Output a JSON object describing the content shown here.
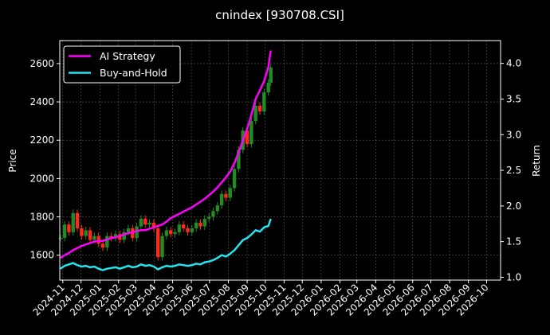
{
  "chart_data": {
    "type": "line",
    "title": "cnindex [930708.CSI]",
    "ylabel_left": "Price",
    "ylabel_right": "Return",
    "xlabel": "",
    "grid": true,
    "legend_position": "top-left",
    "background": "#000000",
    "ylim_left": [
      1470,
      2720
    ],
    "ylim_right": [
      0.96,
      4.32
    ],
    "xlim": [
      "2024-10-27",
      "2026-10-24"
    ],
    "left_ticks": [
      1600,
      1800,
      2000,
      2200,
      2400,
      2600
    ],
    "right_ticks": [
      1.0,
      1.5,
      2.0,
      2.5,
      3.0,
      3.5,
      4.0
    ],
    "x_ticks": [
      "2024-11",
      "2024-12",
      "2025-01",
      "2025-02",
      "2025-03",
      "2025-04",
      "2025-05",
      "2025-06",
      "2025-07",
      "2025-08",
      "2025-09",
      "2025-10",
      "2025-11",
      "2025-12",
      "2026-01",
      "2026-02",
      "2026-03",
      "2026-04",
      "2026-05",
      "2026-06",
      "2026-07",
      "2026-08",
      "2026-09",
      "2026-10"
    ],
    "price_candles": {
      "name": "Price",
      "axis": "left",
      "up_color": "#228B22",
      "down_color": "#ff2a1a",
      "points": [
        {
          "x": "2024-10-28",
          "close": 1690
        },
        {
          "x": "2024-11-04",
          "close": 1760
        },
        {
          "x": "2024-11-11",
          "close": 1720
        },
        {
          "x": "2024-11-18",
          "close": 1820
        },
        {
          "x": "2024-11-25",
          "close": 1740
        },
        {
          "x": "2024-12-02",
          "close": 1700
        },
        {
          "x": "2024-12-09",
          "close": 1730
        },
        {
          "x": "2024-12-16",
          "close": 1680
        },
        {
          "x": "2024-12-23",
          "close": 1700
        },
        {
          "x": "2024-12-30",
          "close": 1660
        },
        {
          "x": "2025-01-06",
          "close": 1640
        },
        {
          "x": "2025-01-13",
          "close": 1700
        },
        {
          "x": "2025-01-20",
          "close": 1690
        },
        {
          "x": "2025-01-27",
          "close": 1710
        },
        {
          "x": "2025-02-03",
          "close": 1680
        },
        {
          "x": "2025-02-10",
          "close": 1720
        },
        {
          "x": "2025-02-17",
          "close": 1740
        },
        {
          "x": "2025-02-24",
          "close": 1690
        },
        {
          "x": "2025-03-03",
          "close": 1750
        },
        {
          "x": "2025-03-10",
          "close": 1790
        },
        {
          "x": "2025-03-17",
          "close": 1760
        },
        {
          "x": "2025-03-24",
          "close": 1770
        },
        {
          "x": "2025-03-31",
          "close": 1740
        },
        {
          "x": "2025-04-07",
          "close": 1590
        },
        {
          "x": "2025-04-14",
          "close": 1700
        },
        {
          "x": "2025-04-21",
          "close": 1730
        },
        {
          "x": "2025-04-28",
          "close": 1710
        },
        {
          "x": "2025-05-05",
          "close": 1720
        },
        {
          "x": "2025-05-12",
          "close": 1760
        },
        {
          "x": "2025-05-19",
          "close": 1740
        },
        {
          "x": "2025-05-26",
          "close": 1720
        },
        {
          "x": "2025-06-02",
          "close": 1740
        },
        {
          "x": "2025-06-09",
          "close": 1770
        },
        {
          "x": "2025-06-16",
          "close": 1750
        },
        {
          "x": "2025-06-23",
          "close": 1790
        },
        {
          "x": "2025-06-30",
          "close": 1800
        },
        {
          "x": "2025-07-07",
          "close": 1830
        },
        {
          "x": "2025-07-14",
          "close": 1860
        },
        {
          "x": "2025-07-21",
          "close": 1920
        },
        {
          "x": "2025-07-28",
          "close": 1900
        },
        {
          "x": "2025-08-04",
          "close": 1950
        },
        {
          "x": "2025-08-11",
          "close": 2050
        },
        {
          "x": "2025-08-18",
          "close": 2150
        },
        {
          "x": "2025-08-25",
          "close": 2250
        },
        {
          "x": "2025-09-01",
          "close": 2180
        },
        {
          "x": "2025-09-08",
          "close": 2300
        },
        {
          "x": "2025-09-15",
          "close": 2380
        },
        {
          "x": "2025-09-22",
          "close": 2350
        },
        {
          "x": "2025-09-29",
          "close": 2450
        },
        {
          "x": "2025-10-06",
          "close": 2500
        },
        {
          "x": "2025-10-10",
          "close": 2580
        }
      ]
    },
    "series": [
      {
        "name": "AI Strategy",
        "axis": "right",
        "color": "#ff00ff",
        "points": [
          [
            "2024-10-28",
            1.27
          ],
          [
            "2024-11-04",
            1.31
          ],
          [
            "2024-11-11",
            1.34
          ],
          [
            "2024-11-18",
            1.38
          ],
          [
            "2024-11-25",
            1.41
          ],
          [
            "2024-12-02",
            1.44
          ],
          [
            "2024-12-09",
            1.46
          ],
          [
            "2024-12-16",
            1.48
          ],
          [
            "2024-12-23",
            1.5
          ],
          [
            "2024-12-30",
            1.51
          ],
          [
            "2025-01-06",
            1.51
          ],
          [
            "2025-01-13",
            1.53
          ],
          [
            "2025-01-20",
            1.55
          ],
          [
            "2025-01-27",
            1.56
          ],
          [
            "2025-02-03",
            1.58
          ],
          [
            "2025-02-10",
            1.6
          ],
          [
            "2025-02-17",
            1.62
          ],
          [
            "2025-02-24",
            1.63
          ],
          [
            "2025-03-03",
            1.65
          ],
          [
            "2025-03-10",
            1.66
          ],
          [
            "2025-03-17",
            1.66
          ],
          [
            "2025-03-24",
            1.68
          ],
          [
            "2025-03-31",
            1.7
          ],
          [
            "2025-04-07",
            1.72
          ],
          [
            "2025-04-14",
            1.74
          ],
          [
            "2025-04-21",
            1.78
          ],
          [
            "2025-04-28",
            1.83
          ],
          [
            "2025-05-05",
            1.86
          ],
          [
            "2025-05-12",
            1.89
          ],
          [
            "2025-05-19",
            1.92
          ],
          [
            "2025-05-26",
            1.95
          ],
          [
            "2025-06-02",
            1.98
          ],
          [
            "2025-06-09",
            2.02
          ],
          [
            "2025-06-16",
            2.06
          ],
          [
            "2025-06-23",
            2.1
          ],
          [
            "2025-06-30",
            2.15
          ],
          [
            "2025-07-07",
            2.2
          ],
          [
            "2025-07-14",
            2.26
          ],
          [
            "2025-07-21",
            2.33
          ],
          [
            "2025-07-28",
            2.4
          ],
          [
            "2025-08-04",
            2.48
          ],
          [
            "2025-08-11",
            2.6
          ],
          [
            "2025-08-18",
            2.75
          ],
          [
            "2025-08-25",
            2.92
          ],
          [
            "2025-09-01",
            3.08
          ],
          [
            "2025-09-08",
            3.28
          ],
          [
            "2025-09-15",
            3.5
          ],
          [
            "2025-09-22",
            3.62
          ],
          [
            "2025-09-29",
            3.75
          ],
          [
            "2025-10-06",
            3.95
          ],
          [
            "2025-10-10",
            4.18
          ]
        ]
      },
      {
        "name": "Buy-and-Hold",
        "axis": "right",
        "color": "#22e5f0",
        "points": [
          [
            "2024-10-28",
            1.12
          ],
          [
            "2024-11-04",
            1.16
          ],
          [
            "2024-11-11",
            1.18
          ],
          [
            "2024-11-18",
            1.2
          ],
          [
            "2024-11-25",
            1.17
          ],
          [
            "2024-12-02",
            1.15
          ],
          [
            "2024-12-09",
            1.16
          ],
          [
            "2024-12-16",
            1.14
          ],
          [
            "2024-12-23",
            1.15
          ],
          [
            "2024-12-30",
            1.12
          ],
          [
            "2025-01-06",
            1.1
          ],
          [
            "2025-01-13",
            1.12
          ],
          [
            "2025-01-20",
            1.13
          ],
          [
            "2025-01-27",
            1.14
          ],
          [
            "2025-02-03",
            1.12
          ],
          [
            "2025-02-10",
            1.14
          ],
          [
            "2025-02-17",
            1.16
          ],
          [
            "2025-02-24",
            1.14
          ],
          [
            "2025-03-03",
            1.15
          ],
          [
            "2025-03-10",
            1.18
          ],
          [
            "2025-03-17",
            1.16
          ],
          [
            "2025-03-24",
            1.17
          ],
          [
            "2025-03-31",
            1.15
          ],
          [
            "2025-04-07",
            1.11
          ],
          [
            "2025-04-14",
            1.14
          ],
          [
            "2025-04-21",
            1.16
          ],
          [
            "2025-04-28",
            1.15
          ],
          [
            "2025-05-05",
            1.16
          ],
          [
            "2025-05-12",
            1.18
          ],
          [
            "2025-05-19",
            1.17
          ],
          [
            "2025-05-26",
            1.16
          ],
          [
            "2025-06-02",
            1.17
          ],
          [
            "2025-06-09",
            1.19
          ],
          [
            "2025-06-16",
            1.18
          ],
          [
            "2025-06-23",
            1.21
          ],
          [
            "2025-06-30",
            1.22
          ],
          [
            "2025-07-07",
            1.24
          ],
          [
            "2025-07-14",
            1.27
          ],
          [
            "2025-07-21",
            1.31
          ],
          [
            "2025-07-28",
            1.29
          ],
          [
            "2025-08-04",
            1.33
          ],
          [
            "2025-08-11",
            1.38
          ],
          [
            "2025-08-18",
            1.45
          ],
          [
            "2025-08-25",
            1.52
          ],
          [
            "2025-09-01",
            1.55
          ],
          [
            "2025-09-08",
            1.6
          ],
          [
            "2025-09-15",
            1.66
          ],
          [
            "2025-09-22",
            1.64
          ],
          [
            "2025-09-29",
            1.7
          ],
          [
            "2025-10-06",
            1.72
          ],
          [
            "2025-10-10",
            1.82
          ]
        ]
      }
    ]
  }
}
